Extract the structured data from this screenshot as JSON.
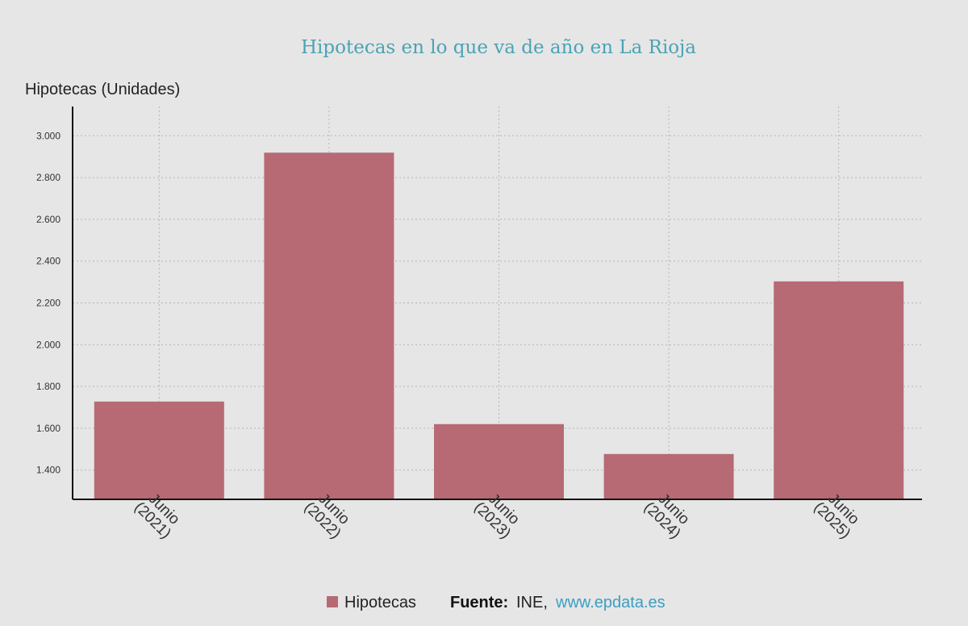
{
  "chart_data": {
    "type": "bar",
    "title": "Hipotecas en lo que va de año en La Rioja",
    "ylabel": "Hipotecas (Unidades)",
    "xlabel": "",
    "categories": [
      [
        "Junio",
        "(2021)"
      ],
      [
        "Junio",
        "(2022)"
      ],
      [
        "Junio",
        "(2023)"
      ],
      [
        "Junio",
        "(2024)"
      ],
      [
        "Junio",
        "(2025)"
      ]
    ],
    "series": [
      {
        "name": "Hipotecas",
        "color": "#b76a74",
        "values": [
          1728,
          2919,
          1620,
          1477,
          2303
        ]
      }
    ],
    "ylim": [
      1260,
      3140
    ],
    "yticks": [
      1400,
      1600,
      1800,
      2000,
      2200,
      2400,
      2600,
      2800,
      3000
    ],
    "ytick_labels": [
      "1.400",
      "1.600",
      "1.800",
      "2.000",
      "2.200",
      "2.400",
      "2.600",
      "2.800",
      "3.000"
    ],
    "grid": true,
    "legend_position": "bottom-center"
  },
  "footer": {
    "source_label": "Fuente:",
    "source_text": "INE,",
    "source_link": "www.epdata.es"
  }
}
